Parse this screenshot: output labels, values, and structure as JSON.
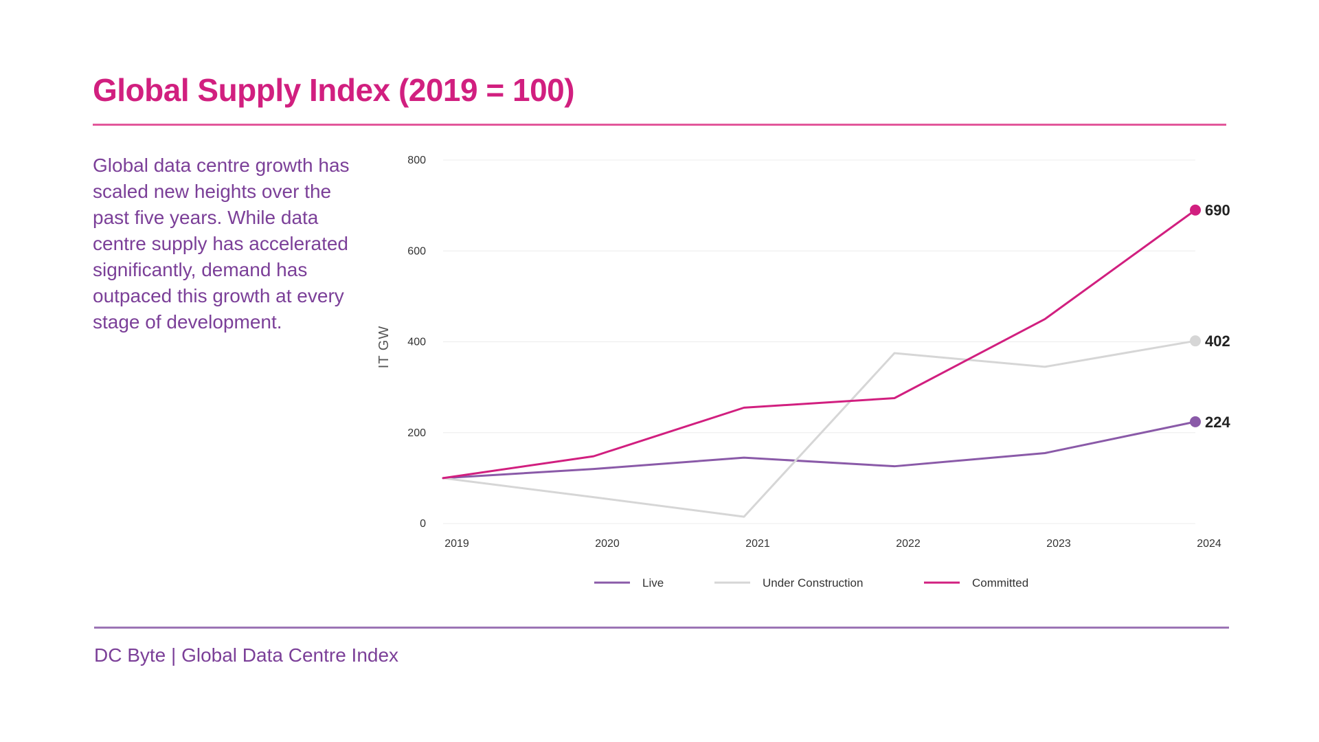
{
  "header": {
    "title": "Global Supply Index (2019 = 100)"
  },
  "description": "Global data centre growth has scaled new heights over the past five years. While data centre supply has accelerated significantly, demand has outpaced this growth at every stage of development.",
  "footer": {
    "source": "DC Byte | Global Data Centre Index"
  },
  "colors": {
    "accent": "#d11f7f",
    "text": "#7b3f98"
  },
  "chart_data": {
    "type": "line",
    "title": "Global Supply Index (2019 = 100)",
    "xlabel": "",
    "ylabel": "IT GW",
    "x": [
      "2019",
      "2020",
      "2021",
      "2022",
      "2023",
      "2024"
    ],
    "ylim": [
      0,
      800
    ],
    "yticks": [
      0,
      200,
      400,
      600,
      800
    ],
    "grid": true,
    "legend_position": "bottom-center",
    "series": [
      {
        "name": "Live",
        "color": "#8a5aa8",
        "values": [
          100,
          120,
          145,
          126,
          155,
          224
        ],
        "end_label": "224"
      },
      {
        "name": "Under Construction",
        "color": "#d6d6d6",
        "values": [
          100,
          58,
          15,
          375,
          345,
          402
        ],
        "end_label": "402"
      },
      {
        "name": "Committed",
        "color": "#d11f7f",
        "values": [
          100,
          148,
          255,
          276,
          450,
          690
        ],
        "end_label": "690"
      }
    ]
  }
}
